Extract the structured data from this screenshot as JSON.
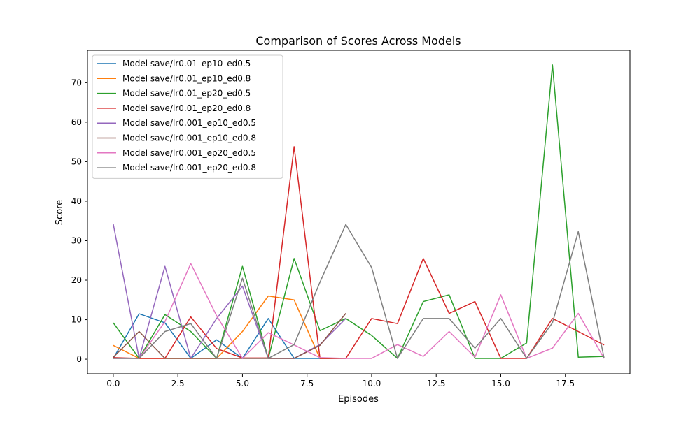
{
  "chart_data": {
    "type": "line",
    "title": "Comparison of Scores Across Models",
    "xlabel": "Episodes",
    "ylabel": "Score",
    "xlim": [
      -1,
      20
    ],
    "ylim": [
      -3.7,
      78.2
    ],
    "x_ticks": [
      0,
      2.5,
      5,
      7.5,
      10,
      12.5,
      15,
      17.5
    ],
    "x_tick_labels": [
      "0.0",
      "2.5",
      "5.0",
      "7.5",
      "10.0",
      "12.5",
      "15.0",
      "17.5"
    ],
    "y_ticks": [
      0,
      10,
      20,
      30,
      40,
      50,
      60,
      70
    ],
    "y_tick_labels": [
      "0",
      "10",
      "20",
      "30",
      "40",
      "50",
      "60",
      "70"
    ],
    "grid": false,
    "legend_position": "top-left",
    "series": [
      {
        "name": "Model save/lr0.01_ep10_ed0.5",
        "color": "#1f77b4",
        "x": [
          0,
          1,
          2,
          3,
          4,
          5,
          6,
          7,
          8,
          9
        ],
        "values": [
          0.2,
          11.5,
          9.2,
          0.2,
          4.9,
          0.2,
          10.3,
          0.2,
          0.2,
          0.2
        ]
      },
      {
        "name": "Model save/lr0.01_ep10_ed0.8",
        "color": "#ff7f0e",
        "x": [
          0,
          1,
          2,
          3,
          4,
          5,
          6,
          7,
          8,
          9
        ],
        "values": [
          3.5,
          0.2,
          0.2,
          0.2,
          0.2,
          7.0,
          16.0,
          15.0,
          0.2,
          0.2
        ]
      },
      {
        "name": "Model save/lr0.01_ep20_ed0.5",
        "color": "#2ca02c",
        "x": [
          0,
          1,
          2,
          3,
          4,
          5,
          6,
          7,
          8,
          9,
          10,
          11,
          12,
          13,
          14,
          15,
          16,
          17,
          18,
          19
        ],
        "values": [
          9.2,
          0.2,
          11.3,
          7.0,
          0.2,
          23.5,
          0.2,
          25.5,
          7.2,
          10.3,
          6.0,
          0.2,
          14.6,
          16.3,
          0.2,
          0.2,
          4.1,
          74.5,
          0.5,
          0.7
        ]
      },
      {
        "name": "Model save/lr0.01_ep20_ed0.8",
        "color": "#d62728",
        "x": [
          0,
          1,
          2,
          3,
          4,
          5,
          6,
          7,
          8,
          9,
          10,
          11,
          12,
          13,
          14,
          15,
          16,
          17,
          18,
          19
        ],
        "values": [
          0.4,
          0.2,
          0.2,
          10.7,
          2.7,
          0.3,
          0.3,
          53.8,
          0.2,
          0.2,
          10.3,
          9.0,
          25.5,
          11.6,
          14.6,
          0.2,
          0.2,
          10.3,
          7.0,
          3.6
        ]
      },
      {
        "name": "Model save/lr0.001_ep10_ed0.5",
        "color": "#9467bd",
        "x": [
          0,
          1,
          2,
          3,
          4,
          5,
          6,
          7,
          8,
          9
        ],
        "values": [
          34.2,
          0.2,
          23.5,
          0.2,
          10.3,
          18.5,
          0.2,
          0.2,
          3.7,
          10.3
        ]
      },
      {
        "name": "Model save/lr0.001_ep10_ed0.8",
        "color": "#8c564b",
        "x": [
          0,
          1,
          2,
          3,
          4,
          5,
          6,
          7,
          8,
          9
        ],
        "values": [
          0.5,
          7.0,
          0.2,
          0.2,
          0.2,
          0.2,
          0.2,
          0.2,
          3.5,
          11.6
        ]
      },
      {
        "name": "Model save/lr0.001_ep20_ed0.5",
        "color": "#e377c2",
        "x": [
          0,
          1,
          2,
          3,
          4,
          5,
          6,
          7,
          8,
          9,
          10,
          11,
          12,
          13,
          14,
          15,
          16,
          17,
          18,
          19
        ],
        "values": [
          0.2,
          0.2,
          9.5,
          24.2,
          11.0,
          0.2,
          6.7,
          3.6,
          0.4,
          0.2,
          0.2,
          3.7,
          0.7,
          7.0,
          0.5,
          16.3,
          0.2,
          2.8,
          11.6,
          0.2
        ]
      },
      {
        "name": "Model save/lr0.001_ep20_ed0.8",
        "color": "#7f7f7f",
        "x": [
          0,
          1,
          2,
          3,
          4,
          5,
          6,
          7,
          8,
          9,
          10,
          11,
          12,
          13,
          14,
          15,
          16,
          17,
          18,
          19
        ],
        "values": [
          0.2,
          0.2,
          7.0,
          9.0,
          0.2,
          20.5,
          0.2,
          3.7,
          19.5,
          34.1,
          23.2,
          0.2,
          10.3,
          10.3,
          2.8,
          10.3,
          0.2,
          9.2,
          32.3,
          0.2
        ]
      }
    ]
  }
}
